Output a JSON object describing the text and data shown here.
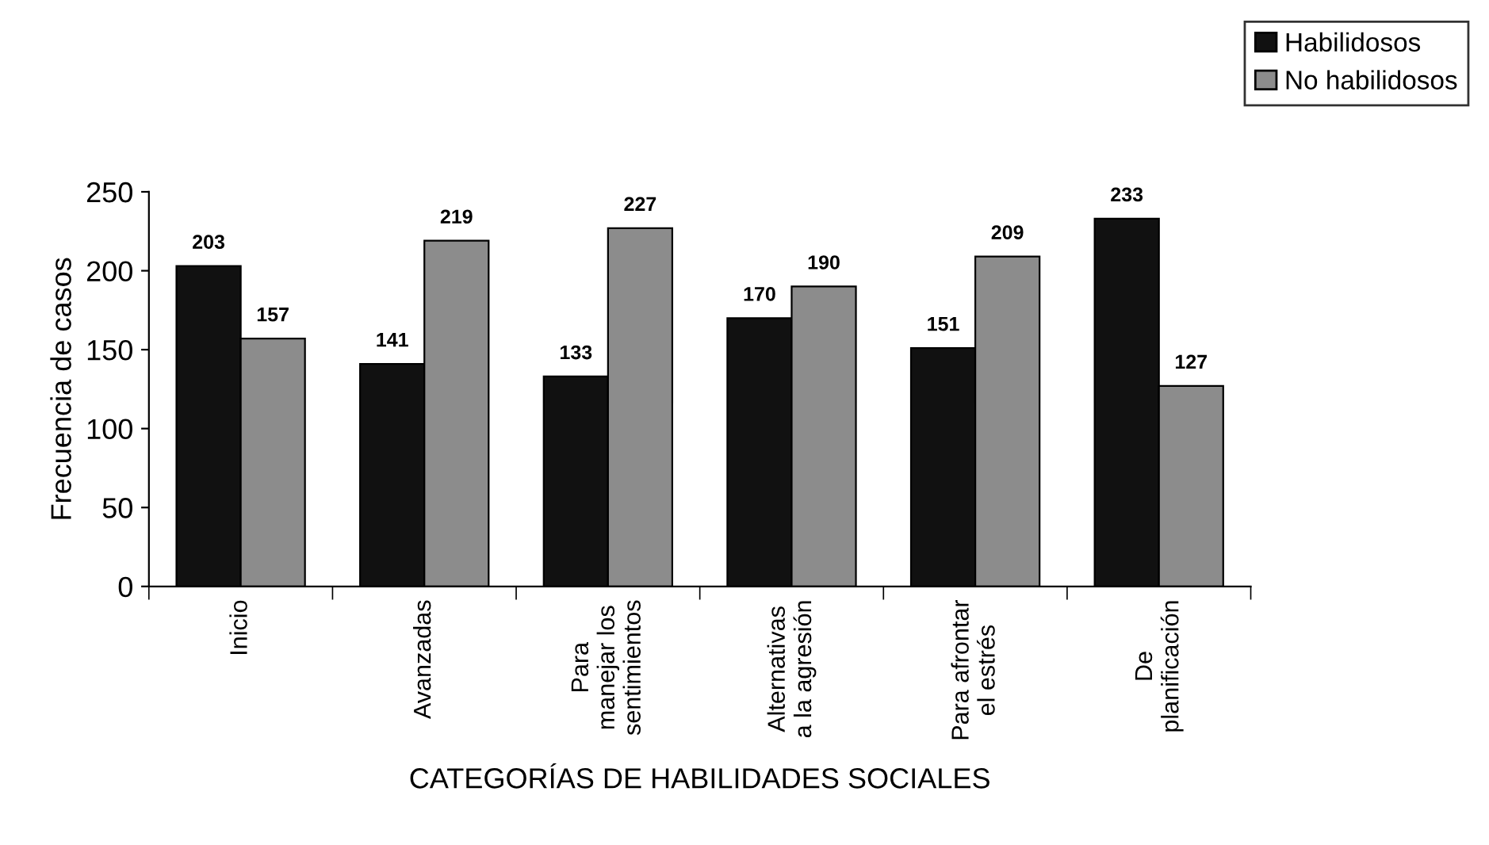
{
  "chart_data": {
    "type": "bar",
    "xlabel": "CATEGORÍAS DE HABILIDADES SOCIALES",
    "ylabel": "Frecuencia de casos",
    "categories": [
      "Inicio",
      "Avanzadas",
      "Para\nmanejar los\nsentimientos",
      "Alternativas\na la agresión",
      "Para afrontar\nel estrés",
      "De\nplanificación"
    ],
    "series": [
      {
        "name": "Habilidosos",
        "color": "#111111",
        "values": [
          203,
          141,
          133,
          170,
          151,
          233
        ]
      },
      {
        "name": "No habilidosos",
        "color": "#8c8c8c",
        "values": [
          157,
          219,
          227,
          190,
          209,
          127
        ]
      }
    ],
    "ylim": [
      0,
      250
    ],
    "yticks": [
      0,
      50,
      100,
      150,
      200,
      250
    ],
    "grid": false,
    "legend": "top right",
    "data_labels": true
  }
}
